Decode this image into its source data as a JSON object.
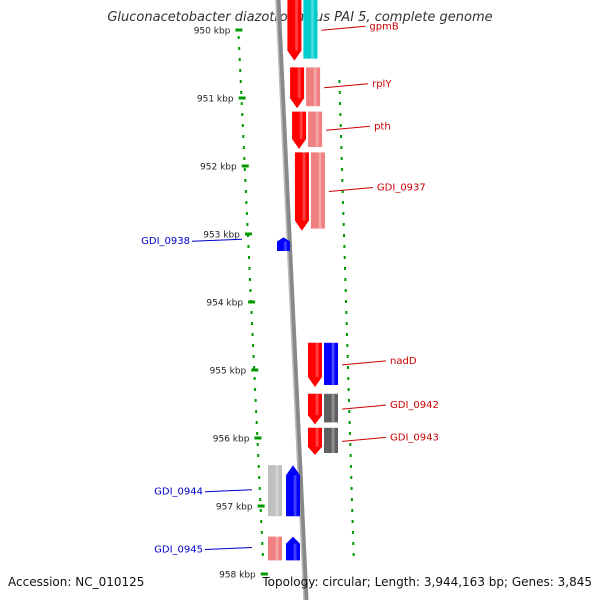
{
  "title": "Gluconacetobacter diazotrophicus PAI 5, complete genome",
  "accession": "Accession: NC_010125",
  "summary": "Topology: circular; Length: 3,944,163 bp; Genes: 3,845",
  "ticks": [
    {
      "label": "950 kbp",
      "pos": 950
    },
    {
      "label": "951 kbp",
      "pos": 951
    },
    {
      "label": "952 kbp",
      "pos": 952
    },
    {
      "label": "953 kbp",
      "pos": 953
    },
    {
      "label": "954 kbp",
      "pos": 954
    },
    {
      "label": "955 kbp",
      "pos": 955
    },
    {
      "label": "956 kbp",
      "pos": 956
    },
    {
      "label": "957 kbp",
      "pos": 957
    },
    {
      "label": "958 kbp",
      "pos": 958
    }
  ],
  "genes": [
    {
      "name": "gpmB",
      "strand": "forward",
      "start": 950.0,
      "end": 950.45
    },
    {
      "name": "rplY",
      "strand": "forward",
      "start": 950.55,
      "end": 951.15
    },
    {
      "name": "pth",
      "strand": "forward",
      "start": 951.2,
      "end": 951.75
    },
    {
      "name": "GDI_0937",
      "strand": "forward",
      "start": 951.8,
      "end": 952.95
    },
    {
      "name": "GDI_0938",
      "strand": "reverse",
      "start": 953.05,
      "end": 953.25
    },
    {
      "name": "nadD",
      "strand": "forward",
      "start": 954.6,
      "end": 955.25
    },
    {
      "name": "GDI_0942",
      "strand": "forward",
      "start": 955.35,
      "end": 955.8
    },
    {
      "name": "GDI_0943",
      "strand": "forward",
      "start": 955.85,
      "end": 956.25
    },
    {
      "name": "GDI_0944",
      "strand": "reverse",
      "start": 956.4,
      "end": 957.15
    },
    {
      "name": "GDI_0945",
      "strand": "reverse",
      "start": 957.45,
      "end": 957.8
    }
  ],
  "colors": {
    "forward_label": "#cc0000",
    "reverse_label": "#0000cc",
    "cds_red": "#ff0000",
    "cds_blue": "#0000ff",
    "gene_pink": "#f08080",
    "gene_cyan": "#00cccc",
    "gene_gray": "#606060",
    "gene_light_gray": "#c0c0c0",
    "backbone": "#888888",
    "gc_green": "#009900"
  }
}
